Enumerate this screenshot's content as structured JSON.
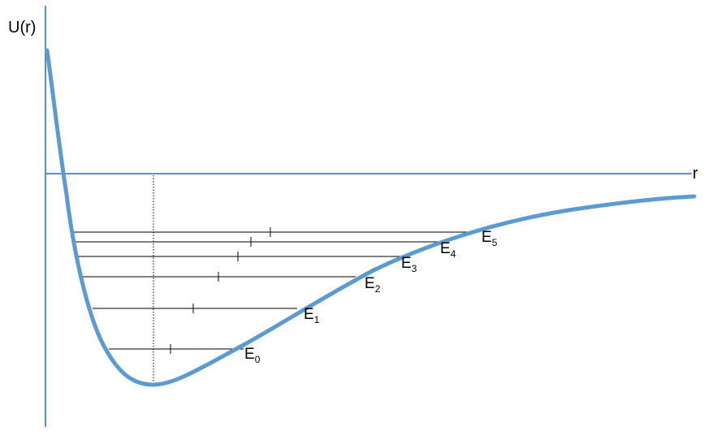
{
  "diagram": {
    "y_axis_label": "U(r)",
    "x_axis_label": "r",
    "colors": {
      "axis": "#5b8fd0",
      "curve": "#5b9bd5",
      "levels": "#000000"
    },
    "energy_levels": [
      {
        "symbol": "E",
        "index": "0"
      },
      {
        "symbol": "E",
        "index": "1"
      },
      {
        "symbol": "E",
        "index": "2"
      },
      {
        "symbol": "E",
        "index": "3"
      },
      {
        "symbol": "E",
        "index": "4"
      },
      {
        "symbol": "E",
        "index": "5"
      }
    ]
  }
}
